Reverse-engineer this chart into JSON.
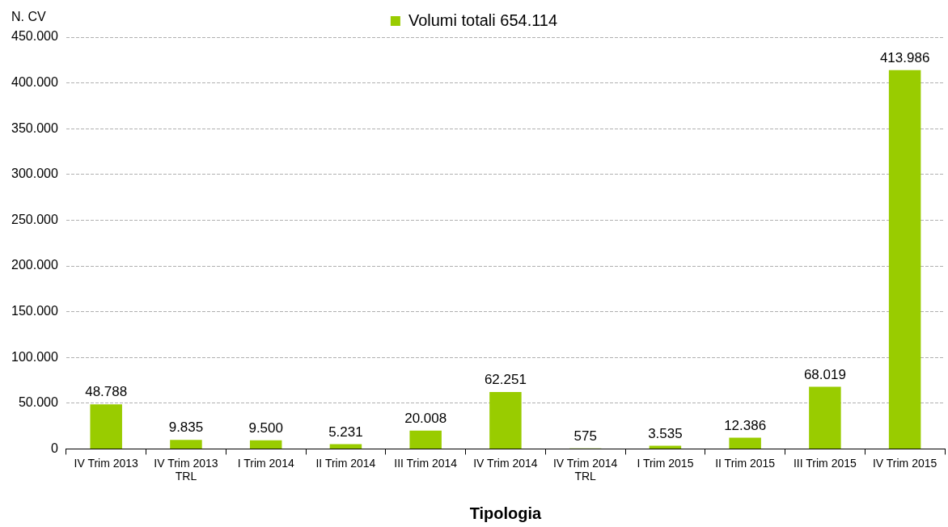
{
  "chart_data": {
    "type": "bar",
    "ylabel": "N. CV",
    "xlabel": "Tipologia",
    "categories": [
      "IV Trim 2013",
      "IV Trim 2013\nTRL",
      "I Trim 2014",
      "II Trim 2014",
      "III Trim 2014",
      "IV Trim 2014",
      "IV Trim 2014\nTRL",
      "I Trim 2015",
      "II Trim 2015",
      "III Trim 2015",
      "IV Trim 2015"
    ],
    "series": [
      {
        "name": "Volumi totali 654.114",
        "color": "#99cc00",
        "values": [
          48788,
          9835,
          9500,
          5231,
          20008,
          62251,
          575,
          3535,
          12386,
          68019,
          413986
        ],
        "value_labels": [
          "48.788",
          "9.835",
          "9.500",
          "5.231",
          "20.008",
          "62.251",
          "575",
          "3.535",
          "12.386",
          "68.019",
          "413.986"
        ]
      }
    ],
    "ylim": [
      0,
      450000
    ],
    "yticks": [
      {
        "value": 0,
        "label": "0"
      },
      {
        "value": 50000,
        "label": "50.000"
      },
      {
        "value": 100000,
        "label": "100.000"
      },
      {
        "value": 150000,
        "label": "150.000"
      },
      {
        "value": 200000,
        "label": "200.000"
      },
      {
        "value": 250000,
        "label": "250.000"
      },
      {
        "value": 300000,
        "label": "300.000"
      },
      {
        "value": 350000,
        "label": "350.000"
      },
      {
        "value": 400000,
        "label": "400.000"
      },
      {
        "value": 450000,
        "label": "450.000"
      }
    ],
    "grid": "y",
    "legend": "top"
  }
}
